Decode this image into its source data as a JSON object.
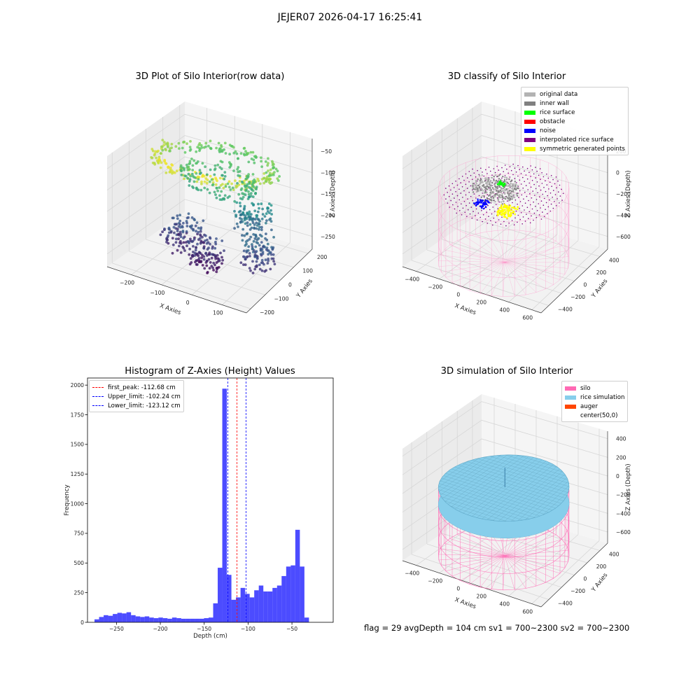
{
  "figure": {
    "suptitle": "JEJER07 2026-04-17 16:25:41",
    "footer": "flag = 29  avgDepth = 104 cm  sv1 = 700~2300  sv2 = 700~2300"
  },
  "chart_data": [
    {
      "type": "scatter",
      "projection": "3d",
      "title": "3D Plot of Silo Interior(row data)",
      "xlabel": "X Axies",
      "ylabel": "Y Axies",
      "zlabel": "Z Axies (Depth)",
      "xticks": [
        -200,
        -100,
        0,
        100
      ],
      "xlim": [
        -280,
        180
      ],
      "yticks": [
        -200,
        -100,
        0,
        100,
        200
      ],
      "ylim": [
        -230,
        230
      ],
      "zticks": [
        -250,
        -200,
        -150,
        -100,
        -50
      ],
      "zlim": [
        -280,
        -20
      ],
      "colormap": "viridis",
      "clusters": [
        {
          "shape": "ring",
          "cx": -50,
          "cy": 20,
          "r": 190,
          "z": -60
        },
        {
          "shape": "band",
          "cx": -60,
          "cy": 60,
          "r": 130,
          "z": -110
        },
        {
          "shape": "blob",
          "cx": -140,
          "cy": -20,
          "r": 70,
          "z": -230
        },
        {
          "shape": "blob",
          "cx": -40,
          "cy": -60,
          "r": 55,
          "z": -245
        },
        {
          "shape": "blob",
          "cx": 60,
          "cy": 60,
          "r": 60,
          "z": -175
        },
        {
          "shape": "blob",
          "cx": 120,
          "cy": -30,
          "r": 55,
          "z": -215
        }
      ]
    },
    {
      "type": "scatter",
      "projection": "3d",
      "title": "3D classify of Silo Interior",
      "xlabel": "X Axies",
      "ylabel": "Y Axies",
      "zlabel": "Z Axies (Depth)",
      "xticks": [
        -400,
        -200,
        0,
        200,
        400,
        600
      ],
      "xlim": [
        -520,
        680
      ],
      "yticks": [
        -400,
        -200,
        0,
        200,
        400
      ],
      "ylim": [
        -520,
        520
      ],
      "zticks": [
        -600,
        -400,
        -200,
        0,
        200
      ],
      "zlim": [
        -720,
        320
      ],
      "silo": {
        "cx": 50,
        "cy": 0,
        "radius": 500,
        "ztop": -50,
        "zbottom": -750
      },
      "legend": [
        {
          "label": "original data",
          "color": "#b3b3b3"
        },
        {
          "label": "inner wall",
          "color": "#808080"
        },
        {
          "label": "rice surface",
          "color": "#00ff00"
        },
        {
          "label": "obstacle",
          "color": "#ff0000"
        },
        {
          "label": "noise",
          "color": "#0000ff"
        },
        {
          "label": "interpolated rice surface",
          "color": "#800080"
        },
        {
          "label": "symmetric generated points",
          "color": "#ffff00"
        }
      ]
    },
    {
      "type": "bar",
      "title": "Histogram of Z-Axies (Height) Values",
      "xlabel": "Depth (cm)",
      "ylabel": "Frequency",
      "xticks": [
        -250,
        -200,
        -150,
        -100,
        -50
      ],
      "xlim": [
        -283,
        -3
      ],
      "yticks": [
        0,
        250,
        500,
        750,
        1000,
        1250,
        1500,
        1750,
        2000
      ],
      "ylim": [
        0,
        2060
      ],
      "bin_start": -275,
      "bin_width": 5.2,
      "values": [
        25,
        45,
        60,
        55,
        70,
        80,
        75,
        85,
        60,
        50,
        45,
        50,
        40,
        35,
        40,
        35,
        30,
        40,
        35,
        30,
        30,
        30,
        30,
        30,
        35,
        40,
        160,
        460,
        1970,
        400,
        190,
        210,
        290,
        240,
        210,
        270,
        310,
        260,
        260,
        290,
        310,
        390,
        470,
        480,
        780,
        470,
        40
      ],
      "color": "#0000ff",
      "vlines": [
        {
          "label": "first_peak: -112.68 cm",
          "x": -112.68,
          "color": "#ff0000"
        },
        {
          "label": "Upper_limit: -102.24 cm",
          "x": -102.24,
          "color": "#0000ff"
        },
        {
          "label": "Lower_limit: -123.12 cm",
          "x": -123.12,
          "color": "#0000ff"
        }
      ]
    },
    {
      "type": "surface",
      "projection": "3d",
      "title": "3D simulation of Silo Interior",
      "xlabel": "X Axies",
      "ylabel": "Y Axies",
      "zlabel": "Z Axies (Depth)",
      "xticks": [
        -400,
        -200,
        0,
        200,
        400,
        600
      ],
      "xlim": [
        -520,
        680
      ],
      "yticks": [
        -400,
        -200,
        0,
        200,
        400
      ],
      "ylim": [
        -520,
        520
      ],
      "zticks": [
        -600,
        -400,
        -200,
        0,
        200,
        400
      ],
      "zlim": [
        -720,
        480
      ],
      "silo": {
        "cx": 50,
        "cy": 0,
        "radius": 500,
        "ztop": -50,
        "zbottom": -750
      },
      "rice_surface_z": -104,
      "legend": [
        {
          "label": "silo",
          "color": "#ff69b4"
        },
        {
          "label": "rice simulation",
          "color": "#87ceeb"
        },
        {
          "label": "auger",
          "color": "#ff4500"
        },
        {
          "label": "center(50,0)",
          "color": "#ffffff"
        }
      ]
    }
  ]
}
